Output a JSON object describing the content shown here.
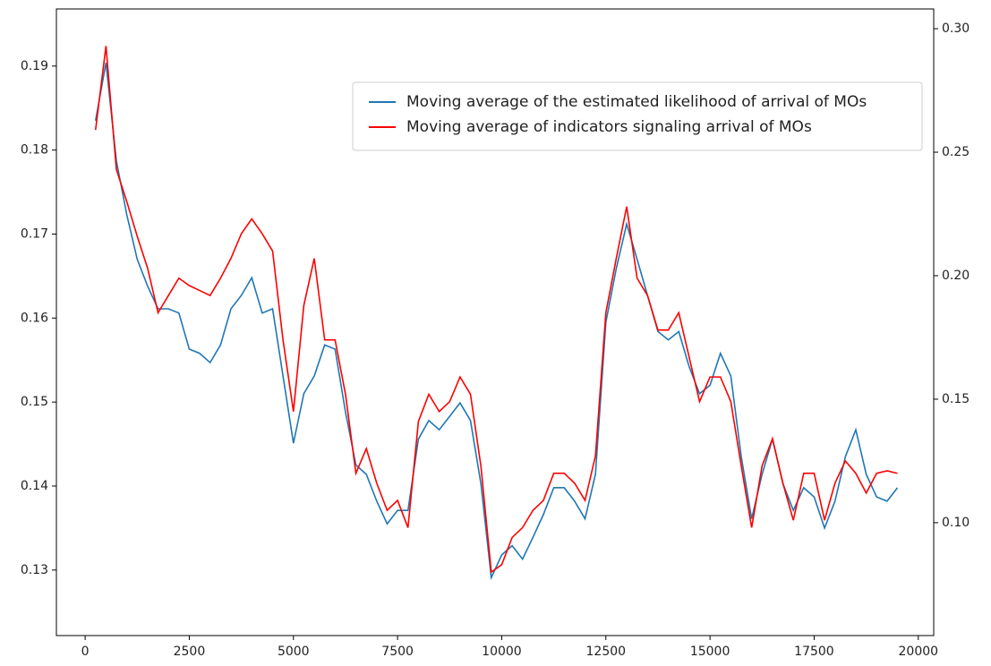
{
  "chart_data": {
    "type": "line",
    "x": [
      250,
      500,
      750,
      1000,
      1250,
      1500,
      1750,
      2000,
      2250,
      2500,
      2750,
      3000,
      3250,
      3500,
      3750,
      4000,
      4250,
      4500,
      4750,
      5000,
      5250,
      5500,
      5750,
      6000,
      6250,
      6500,
      6750,
      7000,
      7250,
      7500,
      7750,
      8000,
      8250,
      8500,
      8750,
      9000,
      9250,
      9500,
      9750,
      10000,
      10250,
      10500,
      10750,
      11000,
      11250,
      11500,
      11750,
      12000,
      12250,
      12500,
      12750,
      13000,
      13250,
      13500,
      13750,
      14000,
      14250,
      14500,
      14750,
      15000,
      15250,
      15500,
      15750,
      16000,
      16250,
      16500,
      16750,
      17000,
      17250,
      17500,
      17750,
      18000,
      18250,
      18500,
      18750,
      19000,
      19250,
      19500
    ],
    "series": [
      {
        "name": "Moving average of the estimated likelihood of arrival of MOs",
        "color": "#1f77b4",
        "axis": "y",
        "values": [
          0.1835,
          0.1904,
          0.1787,
          0.1723,
          0.167,
          0.1638,
          0.1611,
          0.1611,
          0.1606,
          0.1563,
          0.1558,
          0.1547,
          0.1568,
          0.1611,
          0.1627,
          0.1648,
          0.1606,
          0.1611,
          0.1531,
          0.1451,
          0.151,
          0.1531,
          0.1568,
          0.1563,
          0.1488,
          0.1425,
          0.1414,
          0.1382,
          0.1355,
          0.1371,
          0.1371,
          0.1456,
          0.1478,
          0.1467,
          0.1483,
          0.1499,
          0.1478,
          0.1403,
          0.1291,
          0.1318,
          0.1329,
          0.1313,
          0.1339,
          0.1366,
          0.1398,
          0.1398,
          0.1382,
          0.1361,
          0.1414,
          0.1595,
          0.1659,
          0.1712,
          0.167,
          0.1627,
          0.1584,
          0.1574,
          0.1584,
          0.1542,
          0.151,
          0.152,
          0.1558,
          0.1531,
          0.1435,
          0.1361,
          0.1414,
          0.1456,
          0.1403,
          0.1371,
          0.1398,
          0.1387,
          0.135,
          0.1382,
          0.1435,
          0.1467,
          0.1414,
          0.1387,
          0.1382,
          0.1398
        ]
      },
      {
        "name": "Moving average of indicators signaling arrival of MOs",
        "color": "#ff0000",
        "axis": "y2",
        "values": [
          0.259,
          0.293,
          0.243,
          0.23,
          0.216,
          0.203,
          0.185,
          0.192,
          0.199,
          0.196,
          0.194,
          0.192,
          0.199,
          0.207,
          0.217,
          0.223,
          0.217,
          0.21,
          0.174,
          0.145,
          0.188,
          0.207,
          0.174,
          0.174,
          0.152,
          0.12,
          0.13,
          0.116,
          0.105,
          0.109,
          0.098,
          0.141,
          0.152,
          0.145,
          0.149,
          0.159,
          0.152,
          0.123,
          0.08,
          0.083,
          0.094,
          0.098,
          0.105,
          0.109,
          0.12,
          0.12,
          0.116,
          0.109,
          0.127,
          0.185,
          0.207,
          0.228,
          0.199,
          0.192,
          0.178,
          0.178,
          0.185,
          0.167,
          0.149,
          0.159,
          0.159,
          0.149,
          0.123,
          0.098,
          0.123,
          0.134,
          0.116,
          0.101,
          0.12,
          0.12,
          0.101,
          0.116,
          0.125,
          0.12,
          0.112,
          0.12,
          0.121,
          0.12
        ]
      }
    ],
    "xlim": [
      -690,
      20370
    ],
    "xticks": [
      0,
      2500,
      5000,
      7500,
      10000,
      12500,
      15000,
      17500,
      20000
    ],
    "ylim": [
      0.1222,
      0.1968
    ],
    "yticks": [
      0.13,
      0.14,
      0.15,
      0.16,
      0.17,
      0.18,
      0.19
    ],
    "y2lim": [
      0.0543,
      0.308
    ],
    "y2ticks": [
      {
        "value": 0.1,
        "label": "0.10"
      },
      {
        "value": 0.15,
        "label": "0.15"
      },
      {
        "value": 0.2,
        "label": "0.20"
      },
      {
        "value": 0.25,
        "label": "0.25"
      },
      {
        "value": 0.3,
        "label": "0.30"
      }
    ],
    "legend": "upper right"
  }
}
